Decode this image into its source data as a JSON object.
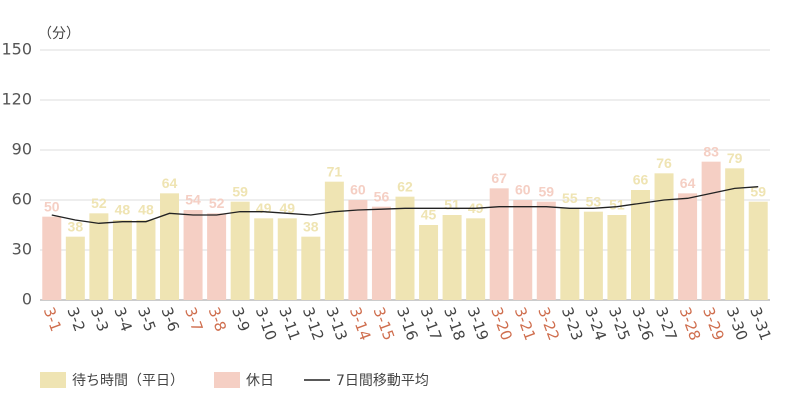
{
  "chart_data": {
    "type": "bar",
    "y_unit": "（分）",
    "categories": [
      "3-1",
      "3-2",
      "3-3",
      "3-4",
      "3-5",
      "3-6",
      "3-7",
      "3-8",
      "3-9",
      "3-10",
      "3-11",
      "3-12",
      "3-13",
      "3-14",
      "3-15",
      "3-16",
      "3-17",
      "3-18",
      "3-19",
      "3-20",
      "3-21",
      "3-22",
      "3-23",
      "3-24",
      "3-25",
      "3-26",
      "3-27",
      "3-28",
      "3-29",
      "3-30",
      "3-31"
    ],
    "series": [
      {
        "name": "待ち時間（平日）",
        "color": "#efe4b3",
        "values": [
          null,
          38,
          52,
          48,
          48,
          64,
          null,
          null,
          59,
          49,
          49,
          38,
          71,
          null,
          null,
          62,
          45,
          51,
          49,
          null,
          null,
          null,
          55,
          53,
          51,
          66,
          76,
          null,
          null,
          79,
          59
        ]
      },
      {
        "name": "休日",
        "color": "#f5cfc4",
        "values": [
          50,
          null,
          null,
          null,
          null,
          null,
          54,
          52,
          null,
          null,
          null,
          null,
          null,
          60,
          56,
          null,
          null,
          null,
          null,
          67,
          60,
          59,
          null,
          null,
          null,
          null,
          null,
          64,
          83,
          null,
          null
        ]
      },
      {
        "name": "7日間移動平均",
        "type": "line",
        "color": "#222222",
        "values": [
          51,
          48,
          46,
          47,
          47,
          52,
          51,
          51,
          53,
          53,
          52,
          51,
          53,
          54,
          54.5,
          55,
          55,
          55,
          55,
          56,
          56,
          56,
          55,
          55,
          56,
          58,
          60,
          61,
          64,
          67,
          68
        ]
      }
    ],
    "holiday_label_color": "#cf6e4e",
    "ylim": [
      0,
      150
    ],
    "yticks": [
      0,
      30,
      60,
      90,
      120,
      150
    ],
    "grid": true
  }
}
